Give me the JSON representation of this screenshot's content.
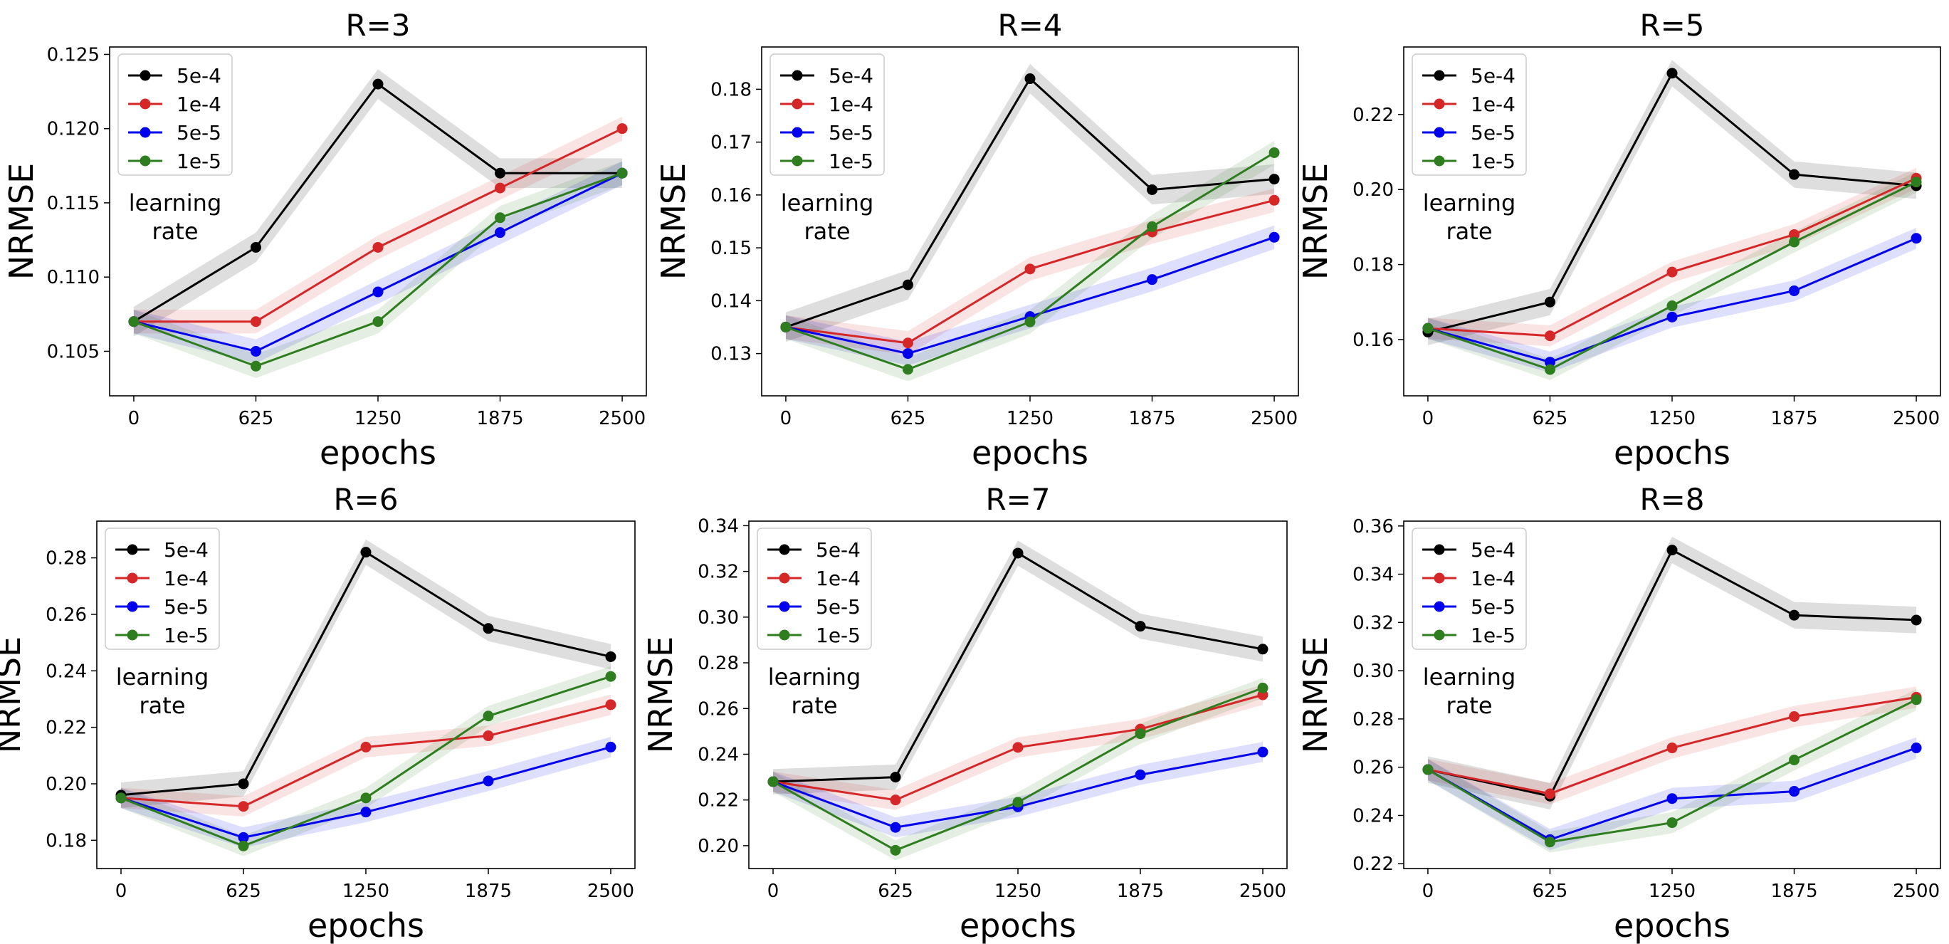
{
  "colors": {
    "5e-4": "#000000",
    "1e-4": "#d62728",
    "5e-5": "#0000ee",
    "1e-5": "#2e7d1f"
  },
  "legend_title": "learning\nrate",
  "chart_data": [
    {
      "type": "line",
      "title": "R=3",
      "xlabel": "epochs",
      "ylabel": "NRMSE",
      "x": [
        0,
        625,
        1250,
        1875,
        2500
      ],
      "ylim": [
        0.102,
        0.1255
      ],
      "yticks": [
        0.105,
        0.11,
        0.115,
        0.12,
        0.125
      ],
      "ytick_labels": [
        "0.105",
        "0.110",
        "0.115",
        "0.120",
        "0.125"
      ],
      "series": [
        {
          "name": "5e-4",
          "values": [
            0.107,
            0.112,
            0.123,
            0.117,
            0.117
          ]
        },
        {
          "name": "1e-4",
          "values": [
            0.107,
            0.107,
            0.112,
            0.116,
            0.12
          ]
        },
        {
          "name": "5e-5",
          "values": [
            0.107,
            0.105,
            0.109,
            0.113,
            0.117
          ]
        },
        {
          "name": "1e-5",
          "values": [
            0.107,
            0.104,
            0.107,
            0.114,
            0.117
          ]
        }
      ]
    },
    {
      "type": "line",
      "title": "R=4",
      "xlabel": "epochs",
      "ylabel": "NRMSE",
      "x": [
        0,
        625,
        1250,
        1875,
        2500
      ],
      "ylim": [
        0.122,
        0.188
      ],
      "yticks": [
        0.13,
        0.14,
        0.15,
        0.16,
        0.17,
        0.18
      ],
      "ytick_labels": [
        "0.13",
        "0.14",
        "0.15",
        "0.16",
        "0.17",
        "0.18"
      ],
      "series": [
        {
          "name": "5e-4",
          "values": [
            0.135,
            0.143,
            0.182,
            0.161,
            0.163
          ]
        },
        {
          "name": "1e-4",
          "values": [
            0.135,
            0.132,
            0.146,
            0.153,
            0.159
          ]
        },
        {
          "name": "5e-5",
          "values": [
            0.135,
            0.13,
            0.137,
            0.144,
            0.152
          ]
        },
        {
          "name": "1e-5",
          "values": [
            0.135,
            0.127,
            0.136,
            0.154,
            0.168
          ]
        }
      ]
    },
    {
      "type": "line",
      "title": "R=5",
      "xlabel": "epochs",
      "ylabel": "NRMSE",
      "x": [
        0,
        625,
        1250,
        1875,
        2500
      ],
      "ylim": [
        0.145,
        0.238
      ],
      "yticks": [
        0.16,
        0.18,
        0.2,
        0.22
      ],
      "ytick_labels": [
        "0.16",
        "0.18",
        "0.20",
        "0.22"
      ],
      "series": [
        {
          "name": "5e-4",
          "values": [
            0.162,
            0.17,
            0.231,
            0.204,
            0.201
          ]
        },
        {
          "name": "1e-4",
          "values": [
            0.163,
            0.161,
            0.178,
            0.188,
            0.203
          ]
        },
        {
          "name": "5e-5",
          "values": [
            0.163,
            0.154,
            0.166,
            0.173,
            0.187
          ]
        },
        {
          "name": "1e-5",
          "values": [
            0.163,
            0.152,
            0.169,
            0.186,
            0.202
          ]
        }
      ]
    },
    {
      "type": "line",
      "title": "R=6",
      "xlabel": "epochs",
      "ylabel": "NRMSE",
      "x": [
        0,
        625,
        1250,
        1875,
        2500
      ],
      "ylim": [
        0.17,
        0.293
      ],
      "yticks": [
        0.18,
        0.2,
        0.22,
        0.24,
        0.26,
        0.28
      ],
      "ytick_labels": [
        "0.18",
        "0.20",
        "0.22",
        "0.24",
        "0.26",
        "0.28"
      ],
      "series": [
        {
          "name": "5e-4",
          "values": [
            0.196,
            0.2,
            0.282,
            0.255,
            0.245
          ]
        },
        {
          "name": "1e-4",
          "values": [
            0.195,
            0.192,
            0.213,
            0.217,
            0.228
          ]
        },
        {
          "name": "5e-5",
          "values": [
            0.195,
            0.181,
            0.19,
            0.201,
            0.213
          ]
        },
        {
          "name": "1e-5",
          "values": [
            0.195,
            0.178,
            0.195,
            0.224,
            0.238
          ]
        }
      ]
    },
    {
      "type": "line",
      "title": "R=7",
      "xlabel": "epochs",
      "ylabel": "NRMSE",
      "x": [
        0,
        625,
        1250,
        1875,
        2500
      ],
      "ylim": [
        0.19,
        0.342
      ],
      "yticks": [
        0.2,
        0.22,
        0.24,
        0.26,
        0.28,
        0.3,
        0.32,
        0.34
      ],
      "ytick_labels": [
        "0.20",
        "0.22",
        "0.24",
        "0.26",
        "0.28",
        "0.30",
        "0.32",
        "0.34"
      ],
      "series": [
        {
          "name": "5e-4",
          "values": [
            0.228,
            0.23,
            0.328,
            0.296,
            0.286
          ]
        },
        {
          "name": "1e-4",
          "values": [
            0.228,
            0.22,
            0.243,
            0.251,
            0.266
          ]
        },
        {
          "name": "5e-5",
          "values": [
            0.228,
            0.208,
            0.217,
            0.231,
            0.241
          ]
        },
        {
          "name": "1e-5",
          "values": [
            0.228,
            0.198,
            0.219,
            0.249,
            0.269
          ]
        }
      ]
    },
    {
      "type": "line",
      "title": "R=8",
      "xlabel": "epochs",
      "ylabel": "NRMSE",
      "x": [
        0,
        625,
        1250,
        1875,
        2500
      ],
      "ylim": [
        0.218,
        0.362
      ],
      "yticks": [
        0.22,
        0.24,
        0.26,
        0.28,
        0.3,
        0.32,
        0.34,
        0.36
      ],
      "ytick_labels": [
        "0.22",
        "0.24",
        "0.26",
        "0.28",
        "0.30",
        "0.32",
        "0.34",
        "0.36"
      ],
      "series": [
        {
          "name": "5e-4",
          "values": [
            0.259,
            0.248,
            0.35,
            0.323,
            0.321
          ]
        },
        {
          "name": "1e-4",
          "values": [
            0.259,
            0.249,
            0.268,
            0.281,
            0.289
          ]
        },
        {
          "name": "5e-5",
          "values": [
            0.259,
            0.23,
            0.247,
            0.25,
            0.268
          ]
        },
        {
          "name": "1e-5",
          "values": [
            0.259,
            0.229,
            0.237,
            0.263,
            0.288
          ]
        }
      ]
    }
  ]
}
